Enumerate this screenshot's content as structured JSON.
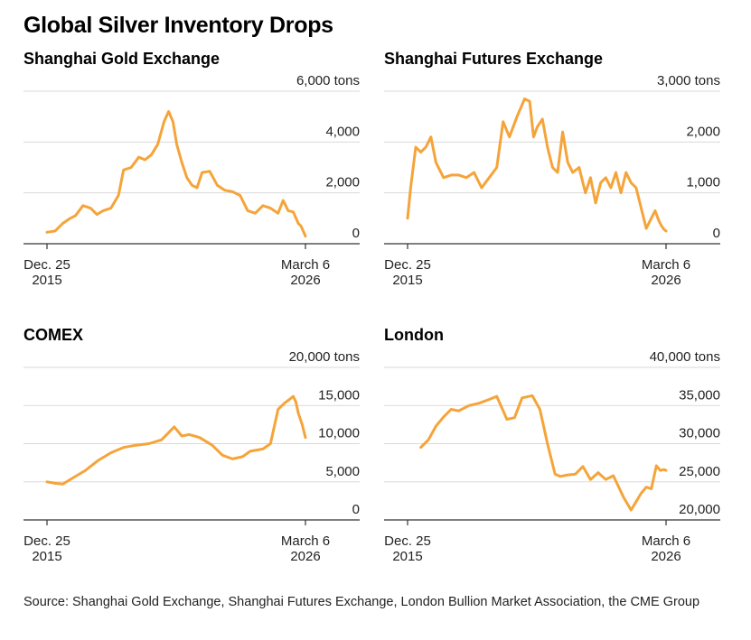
{
  "title": "Global Silver Inventory Drops",
  "source": "Source: Shanghai Gold Exchange, Shanghai Futures Exchange, London Bullion Market Association, the CME Group",
  "colors": {
    "line": "#f5a43a",
    "grid": "#d9d9d9",
    "axis": "#333333",
    "text": "#222222"
  },
  "chart_data": [
    {
      "type": "line",
      "title": "Shanghai Gold Exchange",
      "unit": "tons",
      "ylim": [
        0,
        6000
      ],
      "y_ticks": [
        0,
        2000,
        4000,
        6000
      ],
      "y_tick_labels": [
        "0",
        "2,000",
        "4,000",
        "6,000 tons"
      ],
      "x_tick_labels": [
        [
          "Dec. 25",
          "2015"
        ],
        [
          "March 6",
          "2026"
        ]
      ],
      "x_range": [
        2015.98,
        2026.18
      ],
      "grid": true,
      "series": [
        {
          "x": [
            2015.98,
            2016.3,
            2016.6,
            2016.9,
            2017.1,
            2017.4,
            2017.7,
            2017.95,
            2018.2,
            2018.5,
            2018.8,
            2019.0,
            2019.3,
            2019.6,
            2019.85,
            2020.1,
            2020.35,
            2020.6,
            2020.78,
            2020.95,
            2021.1,
            2021.3,
            2021.5,
            2021.7,
            2021.9,
            2022.1,
            2022.4,
            2022.7,
            2023.0,
            2023.3,
            2023.6,
            2023.9,
            2024.2,
            2024.5,
            2024.8,
            2025.1,
            2025.3,
            2025.5,
            2025.7,
            2025.9,
            2026.0,
            2026.18
          ],
          "values": [
            450,
            500,
            800,
            1000,
            1100,
            1500,
            1400,
            1150,
            1300,
            1400,
            1900,
            2900,
            3000,
            3400,
            3300,
            3500,
            3900,
            4800,
            5200,
            4800,
            3900,
            3200,
            2600,
            2300,
            2200,
            2800,
            2850,
            2300,
            2100,
            2050,
            1900,
            1300,
            1200,
            1500,
            1400,
            1200,
            1700,
            1300,
            1250,
            800,
            700,
            300
          ]
        }
      ]
    },
    {
      "type": "line",
      "title": "Shanghai Futures Exchange",
      "unit": "tons",
      "ylim": [
        0,
        3000
      ],
      "y_ticks": [
        0,
        1000,
        2000,
        3000
      ],
      "y_tick_labels": [
        "0",
        "1,000",
        "2,000",
        "3,000 tons"
      ],
      "x_tick_labels": [
        [
          "Dec. 25",
          "2015"
        ],
        [
          "March 6",
          "2026"
        ]
      ],
      "x_range": [
        2015.98,
        2026.18
      ],
      "grid": true,
      "series": [
        {
          "x": [
            2015.98,
            2016.1,
            2016.3,
            2016.5,
            2016.7,
            2016.9,
            2017.1,
            2017.4,
            2017.7,
            2018.0,
            2018.3,
            2018.6,
            2018.9,
            2019.2,
            2019.5,
            2019.75,
            2020.0,
            2020.3,
            2020.6,
            2020.8,
            2020.95,
            2021.1,
            2021.3,
            2021.5,
            2021.7,
            2021.9,
            2022.1,
            2022.3,
            2022.5,
            2022.75,
            2023.0,
            2023.2,
            2023.4,
            2023.6,
            2023.8,
            2024.0,
            2024.2,
            2024.4,
            2024.6,
            2024.8,
            2025.0,
            2025.2,
            2025.4,
            2025.6,
            2025.75,
            2025.9,
            2026.0,
            2026.1,
            2026.18
          ],
          "values": [
            500,
            1100,
            1900,
            1800,
            1900,
            2100,
            1600,
            1300,
            1350,
            1350,
            1300,
            1400,
            1100,
            1300,
            1500,
            2400,
            2100,
            2500,
            2850,
            2800,
            2100,
            2300,
            2450,
            1900,
            1500,
            1400,
            2200,
            1600,
            1400,
            1500,
            1000,
            1300,
            800,
            1200,
            1300,
            1100,
            1400,
            1000,
            1400,
            1200,
            1100,
            700,
            300,
            500,
            650,
            450,
            350,
            280,
            250
          ]
        }
      ]
    },
    {
      "type": "line",
      "title": "COMEX",
      "unit": "tons",
      "ylim": [
        0,
        20000
      ],
      "y_ticks": [
        0,
        5000,
        10000,
        15000,
        20000
      ],
      "y_tick_labels": [
        "0",
        "5,000",
        "10,000",
        "15,000",
        "20,000 tons"
      ],
      "x_tick_labels": [
        [
          "Dec. 25",
          "2015"
        ],
        [
          "March 6",
          "2026"
        ]
      ],
      "x_range": [
        2015.98,
        2026.18
      ],
      "grid": false,
      "series": [
        {
          "x": [
            2015.98,
            2016.3,
            2016.6,
            2017.0,
            2017.5,
            2018.0,
            2018.5,
            2019.0,
            2019.5,
            2020.0,
            2020.5,
            2021.0,
            2021.3,
            2021.6,
            2022.0,
            2022.5,
            2022.9,
            2023.3,
            2023.7,
            2024.0,
            2024.5,
            2024.8,
            2025.1,
            2025.35,
            2025.55,
            2025.7,
            2025.8,
            2025.9,
            2026.05,
            2026.18
          ],
          "values": [
            5000,
            4800,
            4700,
            5500,
            6500,
            7800,
            8800,
            9500,
            9800,
            10000,
            10500,
            12200,
            11000,
            11200,
            10800,
            9800,
            8500,
            8000,
            8300,
            9000,
            9300,
            10000,
            14500,
            15300,
            15800,
            16200,
            15500,
            14000,
            12500,
            10800
          ]
        }
      ]
    },
    {
      "type": "line",
      "title": "London",
      "unit": "tons",
      "ylim": [
        20000,
        40000
      ],
      "y_ticks": [
        20000,
        25000,
        30000,
        35000,
        40000
      ],
      "y_tick_labels": [
        "20,000",
        "25,000",
        "30,000",
        "35,000",
        "40,000 tons"
      ],
      "x_tick_labels": [
        [
          "Dec. 25",
          "2015"
        ],
        [
          "March 6",
          "2026"
        ]
      ],
      "x_range": [
        2015.98,
        2026.18
      ],
      "grid": false,
      "series": [
        {
          "x": [
            2016.5,
            2016.8,
            2017.1,
            2017.4,
            2017.7,
            2018.0,
            2018.4,
            2018.8,
            2019.2,
            2019.5,
            2019.9,
            2020.2,
            2020.5,
            2020.9,
            2021.2,
            2021.5,
            2021.8,
            2022.0,
            2022.3,
            2022.6,
            2022.9,
            2023.2,
            2023.5,
            2023.8,
            2024.1,
            2024.5,
            2024.8,
            2025.0,
            2025.2,
            2025.4,
            2025.6,
            2025.8,
            2025.95,
            2026.1,
            2026.18
          ],
          "values": [
            29500,
            30500,
            32300,
            33500,
            34500,
            34300,
            35000,
            35300,
            35800,
            36200,
            33200,
            33400,
            36000,
            36300,
            34500,
            30000,
            26000,
            25700,
            25900,
            26000,
            27000,
            25300,
            26200,
            25300,
            25800,
            23000,
            21300,
            22400,
            23500,
            24300,
            24100,
            27100,
            26500,
            26600,
            26500
          ]
        }
      ]
    }
  ]
}
